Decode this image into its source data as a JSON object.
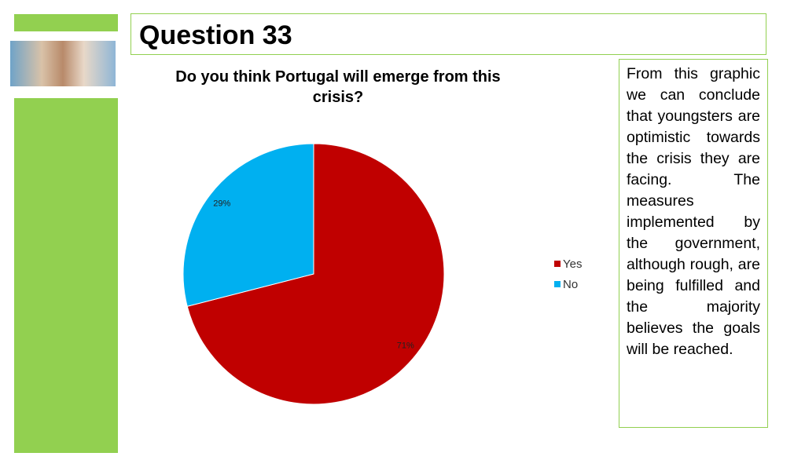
{
  "slide_title": "Question 33",
  "chart_data": {
    "type": "pie",
    "title": "Do you think Portugal will emerge from this crisis?",
    "categories": [
      "Yes",
      "No"
    ],
    "values": [
      71,
      29
    ],
    "value_labels": [
      "71%",
      "29%"
    ],
    "colors": [
      "#c00000",
      "#00b0f0"
    ],
    "legend": "right"
  },
  "side_text": "From this graphic we can conclude that youngsters are optimistic towards the crisis they are facing. The measures implemented by the government, although rough, are being fulfilled and the majority believes the goals will be reached."
}
